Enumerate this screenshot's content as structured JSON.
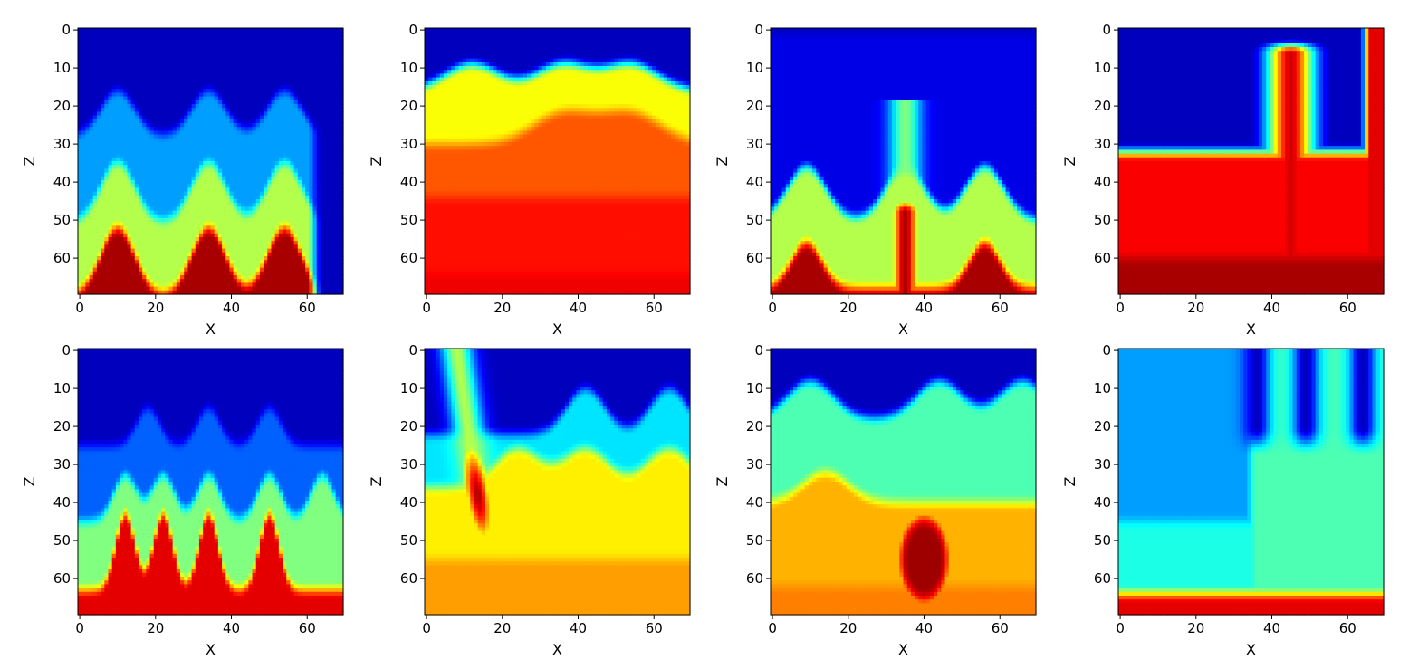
{
  "chart_data": [
    {
      "type": "heatmap",
      "xlabel": "X",
      "ylabel": "Z",
      "xlim": [
        0,
        69
      ],
      "ylim": [
        69,
        0
      ],
      "xticks": [
        "0",
        "20",
        "40",
        "60"
      ],
      "yticks": [
        "0",
        "10",
        "20",
        "30",
        "40",
        "50",
        "60"
      ],
      "colormap": "jet",
      "value_range": [
        0,
        1
      ],
      "layers": [
        {
          "depth": 0,
          "value": 0.06
        },
        {
          "depth": 28,
          "value": 0.28,
          "amp": 12,
          "peaks": [
            10,
            34,
            54
          ],
          "width": 4.5
        },
        {
          "depth": 51,
          "value": 0.55,
          "amp": 16,
          "peaks": [
            10,
            34,
            54
          ],
          "width": 4.5
        },
        {
          "depth": 70,
          "value": 0.96,
          "amp": 18,
          "peaks": [
            10,
            34,
            54
          ],
          "width": 4.5
        }
      ],
      "right_cutoff": 60
    },
    {
      "type": "heatmap",
      "xlabel": "X",
      "ylabel": "Z",
      "xlim": [
        0,
        69
      ],
      "ylim": [
        69,
        0
      ],
      "xticks": [
        "0",
        "20",
        "40",
        "60"
      ],
      "yticks": [
        "0",
        "10",
        "20",
        "30",
        "40",
        "50",
        "60"
      ],
      "colormap": "jet",
      "value_range": [
        0,
        1
      ],
      "layers": [
        {
          "depth": 0,
          "value": 0.06
        },
        {
          "depth": 16,
          "value": 0.62,
          "amp": 7,
          "peaks": [
            12,
            36,
            54
          ],
          "width": 7
        },
        {
          "depth": 30,
          "value": 0.79,
          "amp": 8,
          "peaks": [
            36,
            54
          ],
          "width": 8
        },
        {
          "depth": 44,
          "value": 0.86,
          "amp": 0,
          "peaks": [],
          "width": 5
        },
        {
          "depth": 64,
          "value": 0.89,
          "amp": 0,
          "peaks": [],
          "width": 5
        }
      ]
    },
    {
      "type": "heatmap",
      "xlabel": "X",
      "ylabel": "Z",
      "xlim": [
        0,
        69
      ],
      "ylim": [
        69,
        0
      ],
      "xticks": [
        "0",
        "20",
        "40",
        "60"
      ],
      "yticks": [
        "0",
        "10",
        "20",
        "30",
        "40",
        "50",
        "60"
      ],
      "colormap": "jet",
      "value_range": [
        0,
        1
      ],
      "layers": [
        {
          "depth": 0,
          "value": 0.06
        },
        {
          "depth": 1,
          "value": 0.1
        },
        {
          "depth": 50,
          "value": 0.55,
          "amp": 14,
          "peaks": [
            9,
            35,
            56
          ],
          "width": 5
        },
        {
          "depth": 68,
          "value": 0.96,
          "amp": 12,
          "peaks": [
            9,
            56
          ],
          "width": 4
        }
      ],
      "center_spike": {
        "x": 35,
        "depth": 46,
        "width": 3
      }
    },
    {
      "type": "heatmap",
      "xlabel": "X",
      "ylabel": "Z",
      "xlim": [
        0,
        69
      ],
      "ylim": [
        69,
        0
      ],
      "xticks": [
        "0",
        "20",
        "40",
        "60"
      ],
      "yticks": [
        "0",
        "10",
        "20",
        "30",
        "40",
        "50",
        "60"
      ],
      "colormap": "jet",
      "value_range": [
        0,
        1
      ],
      "layers": [
        {
          "depth": 0,
          "value": 0.06
        },
        {
          "depth": 32,
          "value": 0.88,
          "amp": 0,
          "peaks": [],
          "width": 5
        },
        {
          "depth": 60,
          "value": 0.96,
          "amp": 0,
          "peaks": [],
          "width": 5
        }
      ],
      "dome": {
        "x": 45,
        "top": 2,
        "width": 4.5
      }
    },
    {
      "type": "heatmap",
      "xlabel": "X",
      "ylabel": "Z",
      "xlim": [
        0,
        69
      ],
      "ylim": [
        69,
        0
      ],
      "xticks": [
        "0",
        "20",
        "40",
        "60"
      ],
      "yticks": [
        "0",
        "10",
        "20",
        "30",
        "40",
        "50",
        "60"
      ],
      "colormap": "jet",
      "value_range": [
        0,
        1
      ],
      "layers": [
        {
          "depth": 0,
          "value": 0.06
        },
        {
          "depth": 25,
          "value": 0.22,
          "amp": 10,
          "peaks": [
            18,
            34,
            50
          ],
          "width": 3
        },
        {
          "depth": 45,
          "value": 0.5,
          "amp": 12,
          "peaks": [
            12,
            22,
            34,
            50,
            64
          ],
          "width": 3
        },
        {
          "depth": 63,
          "value": 0.9,
          "amp": 20,
          "peaks": [
            12,
            22,
            34,
            50
          ],
          "width": 2.5
        }
      ]
    },
    {
      "type": "heatmap",
      "xlabel": "X",
      "ylabel": "Z",
      "xlim": [
        0,
        69
      ],
      "ylim": [
        69,
        0
      ],
      "xticks": [
        "0",
        "20",
        "40",
        "60"
      ],
      "yticks": [
        "0",
        "10",
        "20",
        "30",
        "40",
        "50",
        "60"
      ],
      "colormap": "jet",
      "value_range": [
        0,
        1
      ],
      "layers": [
        {
          "depth": 0,
          "value": 0.06
        },
        {
          "depth": 22,
          "value": 0.35,
          "amp": 12,
          "peaks": [
            42,
            64
          ],
          "width": 5
        },
        {
          "depth": 36,
          "value": 0.64,
          "amp": 10,
          "peaks": [
            24,
            42,
            64
          ],
          "width": 6
        },
        {
          "depth": 55,
          "value": 0.72,
          "amp": 0,
          "peaks": [],
          "width": 5
        }
      ],
      "diagonal_streak": {
        "x0": 8,
        "x1": 18,
        "value": 0.95
      }
    },
    {
      "type": "heatmap",
      "xlabel": "X",
      "ylabel": "Z",
      "xlim": [
        0,
        69
      ],
      "ylim": [
        69,
        0
      ],
      "xticks": [
        "0",
        "20",
        "40",
        "60"
      ],
      "yticks": [
        "0",
        "10",
        "20",
        "30",
        "40",
        "50",
        "60"
      ],
      "colormap": "jet",
      "value_range": [
        0,
        1
      ],
      "layers": [
        {
          "depth": 0,
          "value": 0.06
        },
        {
          "depth": 18,
          "value": 0.45,
          "amp": 10,
          "peaks": [
            10,
            44,
            66
          ],
          "width": 6
        },
        {
          "depth": 40,
          "value": 0.7,
          "amp": 8,
          "peaks": [
            14
          ],
          "width": 6
        },
        {
          "depth": 62,
          "value": 0.75,
          "amp": 0,
          "peaks": [],
          "width": 5
        }
      ],
      "blob": {
        "x": 40,
        "z": 55,
        "rx": 9,
        "rz": 16,
        "value": 0.97
      }
    },
    {
      "type": "heatmap",
      "xlabel": "X",
      "ylabel": "Z",
      "xlim": [
        0,
        69
      ],
      "ylim": [
        69,
        0
      ],
      "xticks": [
        "0",
        "20",
        "40",
        "60"
      ],
      "yticks": [
        "0",
        "10",
        "20",
        "30",
        "40",
        "50",
        "60"
      ],
      "colormap": "jet",
      "value_range": [
        0,
        1
      ],
      "layers": [
        {
          "depth": 0,
          "value": 0.28
        },
        {
          "depth": 45,
          "value": 0.4,
          "amp": 0,
          "peaks": [],
          "width": 5
        },
        {
          "depth": 64,
          "value": 0.9,
          "amp": 0,
          "peaks": [],
          "width": 5
        }
      ],
      "fingers": [
        {
          "x": 36,
          "value": 0.06
        },
        {
          "x": 49,
          "value": 0.06
        },
        {
          "x": 64,
          "value": 0.06
        }
      ],
      "right_fill": {
        "from_x": 30,
        "value": 0.45
      }
    }
  ]
}
